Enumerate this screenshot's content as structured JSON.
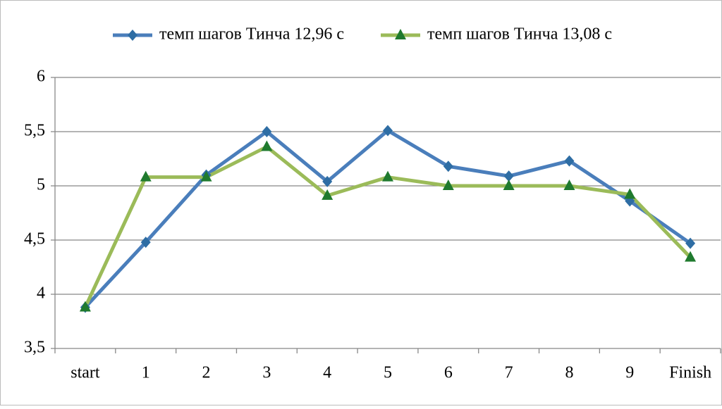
{
  "chart_data": {
    "type": "line",
    "categories": [
      "start",
      "1",
      "2",
      "3",
      "4",
      "5",
      "6",
      "7",
      "8",
      "9",
      "Finish"
    ],
    "series": [
      {
        "name": "темп шагов Тинча 12,96 с",
        "color": "#4a7ebb",
        "marker_color": "#2e6da4",
        "marker": "diamond",
        "values": [
          3.88,
          4.48,
          5.1,
          5.5,
          5.04,
          5.51,
          5.18,
          5.09,
          5.23,
          4.86,
          4.47
        ]
      },
      {
        "name": "темп шагов Тинча 13,08 с",
        "color": "#9bbb59",
        "marker_color": "#1f7a2e",
        "marker": "triangle",
        "values": [
          3.88,
          5.08,
          5.08,
          5.36,
          4.91,
          5.08,
          5.0,
          5.0,
          5.0,
          4.92,
          4.34
        ]
      }
    ],
    "ylim": [
      3.5,
      6
    ],
    "yticks": [
      {
        "value": 3.5,
        "label": "3,5"
      },
      4,
      {
        "value": 4.5,
        "label": "4,5"
      },
      5,
      {
        "value": 5.5,
        "label": "5,5"
      },
      6
    ],
    "grid": true,
    "legend": "top"
  }
}
